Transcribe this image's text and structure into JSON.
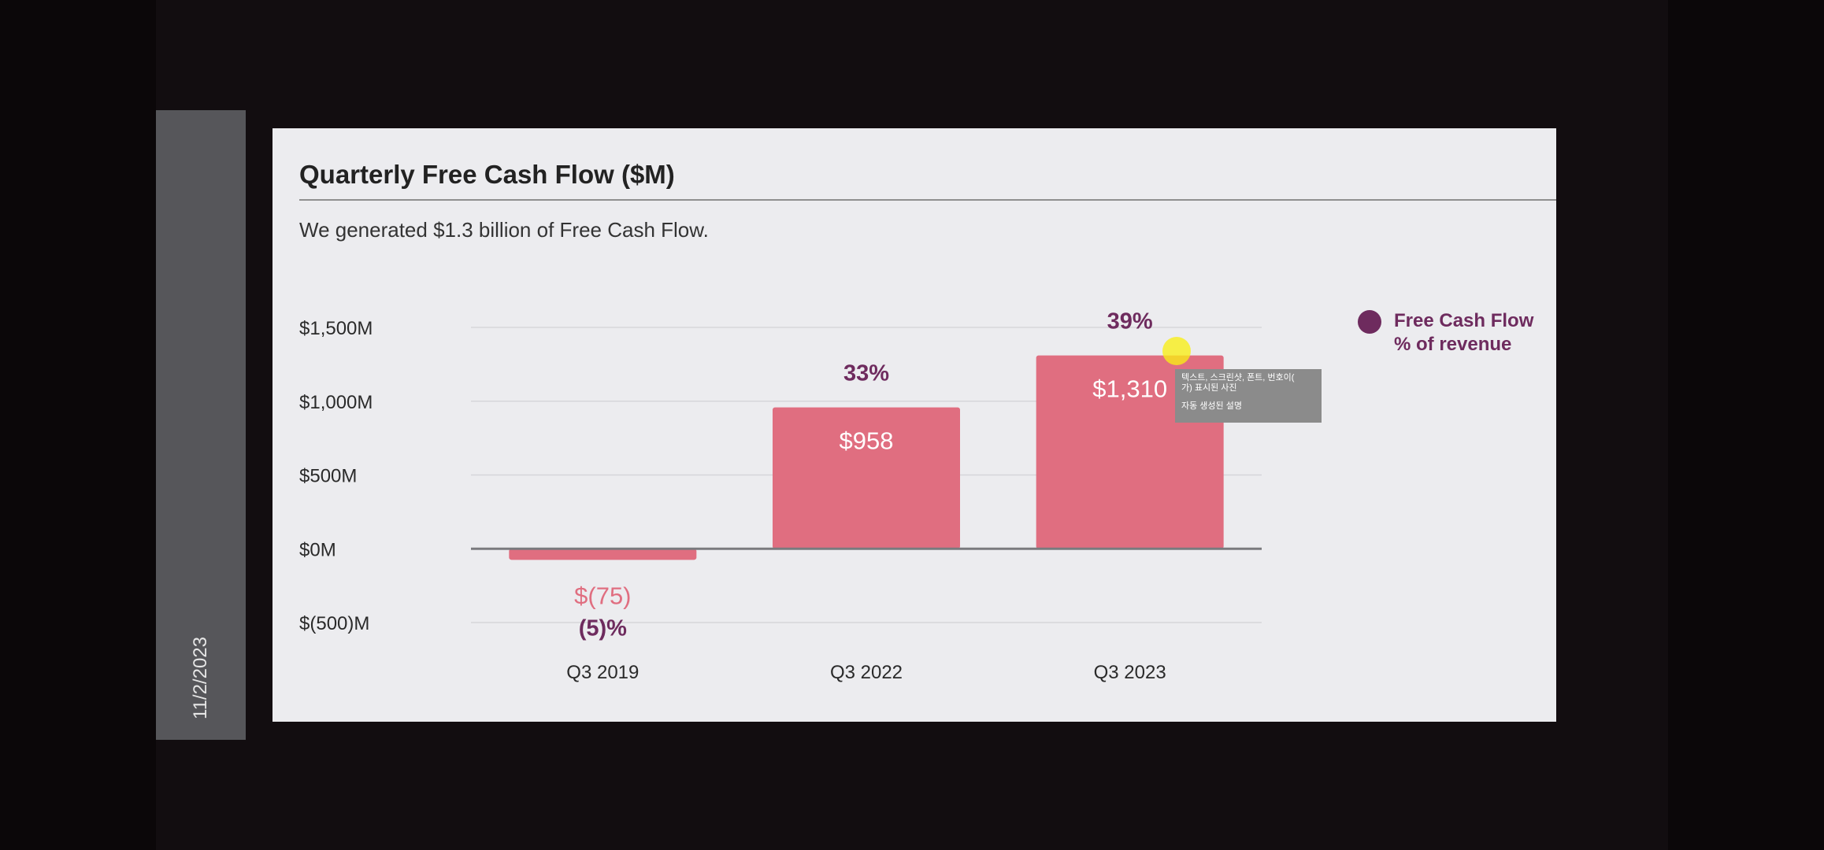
{
  "side_bar": {
    "date": "11/2/2023"
  },
  "slide": {
    "title": "Quarterly Free Cash Flow ($M)",
    "subtitle": "We generated $1.3 billion of Free Cash Flow."
  },
  "legend": {
    "line1": "Free Cash Flow",
    "line2": "% of revenue"
  },
  "tooltip": {
    "line1": "텍스트, 스크린샷, 폰트, 번호이(",
    "line1b": "가) 표시된 사진",
    "line2": "자동 생성된 설명"
  },
  "colors": {
    "bar": "#e06e80",
    "negative_label": "#e06e80",
    "percent_label": "#6e2b5e",
    "legend_dot": "#6e2b5e",
    "axis_text": "#2a2a2a"
  },
  "chart_data": {
    "type": "bar",
    "title": "Quarterly Free Cash Flow ($M)",
    "xlabel": "",
    "ylabel": "",
    "categories": [
      "Q3 2019",
      "Q3 2022",
      "Q3 2023"
    ],
    "series": [
      {
        "name": "Free Cash Flow",
        "values": [
          -75,
          958,
          1310
        ]
      }
    ],
    "value_labels": [
      "$(75)",
      "$958",
      "$1,310"
    ],
    "percent_of_revenue": [
      -5,
      33,
      39
    ],
    "percent_labels": [
      "(5)%",
      "33%",
      "39%"
    ],
    "y_ticks": [
      1500,
      1000,
      500,
      0,
      -500
    ],
    "y_tick_labels": [
      "$1,500M",
      "$1,000M",
      "$500M",
      "$0M",
      "$(500)M"
    ],
    "ylim": [
      -500,
      1500
    ],
    "grid": true,
    "legend_position": "top-right"
  }
}
